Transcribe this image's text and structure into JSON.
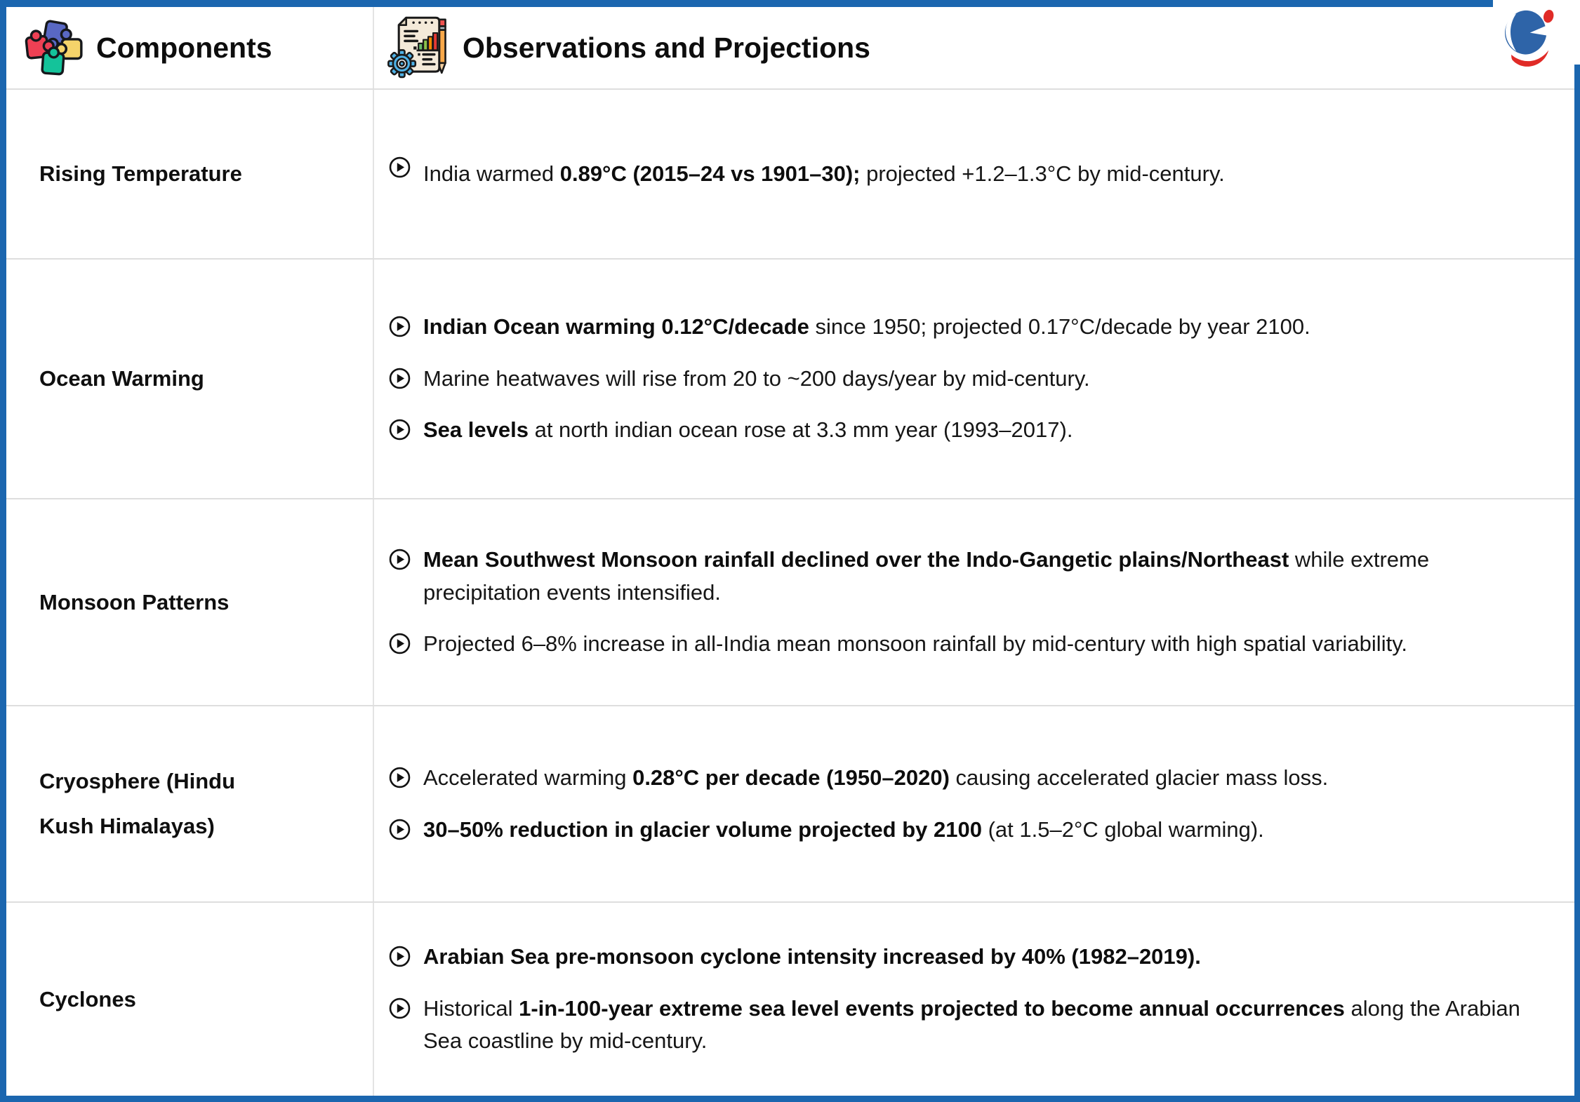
{
  "header": {
    "components_label": "Components",
    "observations_label": "Observations and Projections"
  },
  "rows": [
    {
      "component": "Rising Temperature",
      "bullets": [
        {
          "segments": [
            {
              "text": "India warmed ",
              "bold": false
            },
            {
              "text": "0.89°C (2015–24 vs 1901–30);",
              "bold": true
            },
            {
              "text": " projected +1.2–1.3°C by mid-century.",
              "bold": false
            }
          ]
        }
      ]
    },
    {
      "component": "Ocean Warming",
      "bullets": [
        {
          "segments": [
            {
              "text": "Indian Ocean warming 0.12°C/decade",
              "bold": true
            },
            {
              "text": " since 1950; projected 0.17°C/decade by year 2100.",
              "bold": false
            }
          ]
        },
        {
          "segments": [
            {
              "text": "Marine heatwaves will rise from 20 to ~200 days/year by mid-century.",
              "bold": false
            }
          ]
        },
        {
          "segments": [
            {
              "text": "Sea levels",
              "bold": true
            },
            {
              "text": " at north indian ocean rose at 3.3 mm year (1993–2017).",
              "bold": false
            }
          ]
        }
      ]
    },
    {
      "component": "Monsoon Patterns",
      "bullets": [
        {
          "segments": [
            {
              "text": "Mean Southwest Monsoon rainfall declined over the Indo-Gangetic plains/Northeast",
              "bold": true
            },
            {
              "text": " while extreme precipitation events intensified.",
              "bold": false
            }
          ]
        },
        {
          "segments": [
            {
              "text": "Projected 6–8% increase in all-India mean monsoon rainfall by mid-century with high spatial variability.",
              "bold": false
            }
          ]
        }
      ]
    },
    {
      "component": "Cryosphere (Hindu Kush Himalayas)",
      "bullets": [
        {
          "segments": [
            {
              "text": "Accelerated warming ",
              "bold": false
            },
            {
              "text": "0.28°C per decade (1950–2020)",
              "bold": true
            },
            {
              "text": " causing accelerated glacier mass loss.",
              "bold": false
            }
          ]
        },
        {
          "segments": [
            {
              "text": "30–50% reduction in glacier volume projected by 2100",
              "bold": true
            },
            {
              "text": " (at 1.5–2°C global warming).",
              "bold": false
            }
          ]
        }
      ]
    },
    {
      "component": "Cyclones",
      "bullets": [
        {
          "segments": [
            {
              "text": "Arabian Sea pre-monsoon cyclone intensity increased by 40% (1982–2019).",
              "bold": true
            }
          ]
        },
        {
          "segments": [
            {
              "text": "Historical ",
              "bold": false
            },
            {
              "text": "1-in-100-year extreme sea level events projected to become annual occurrences",
              "bold": true
            },
            {
              "text": " along the Arabian Sea coastline by mid-century.",
              "bold": false
            }
          ]
        }
      ]
    }
  ],
  "icons": {
    "components_header": "puzzle-icon",
    "observations_header": "report-gear-chart-icon",
    "bullet": "circled-play-icon",
    "brand": "brand-logo"
  },
  "colors": {
    "frame_blue": "#1b66af",
    "separator_gray": "#dedede",
    "text_black": "#151515",
    "puzzle_blue": "#5968c4",
    "puzzle_red": "#ee4054",
    "puzzle_yellow": "#f5d36a",
    "puzzle_green": "#14c39a",
    "gear_blue": "#4fb3e8",
    "pencil_orange": "#f9a94a",
    "logo_blue": "#2e64a8",
    "logo_red": "#e02b27"
  }
}
